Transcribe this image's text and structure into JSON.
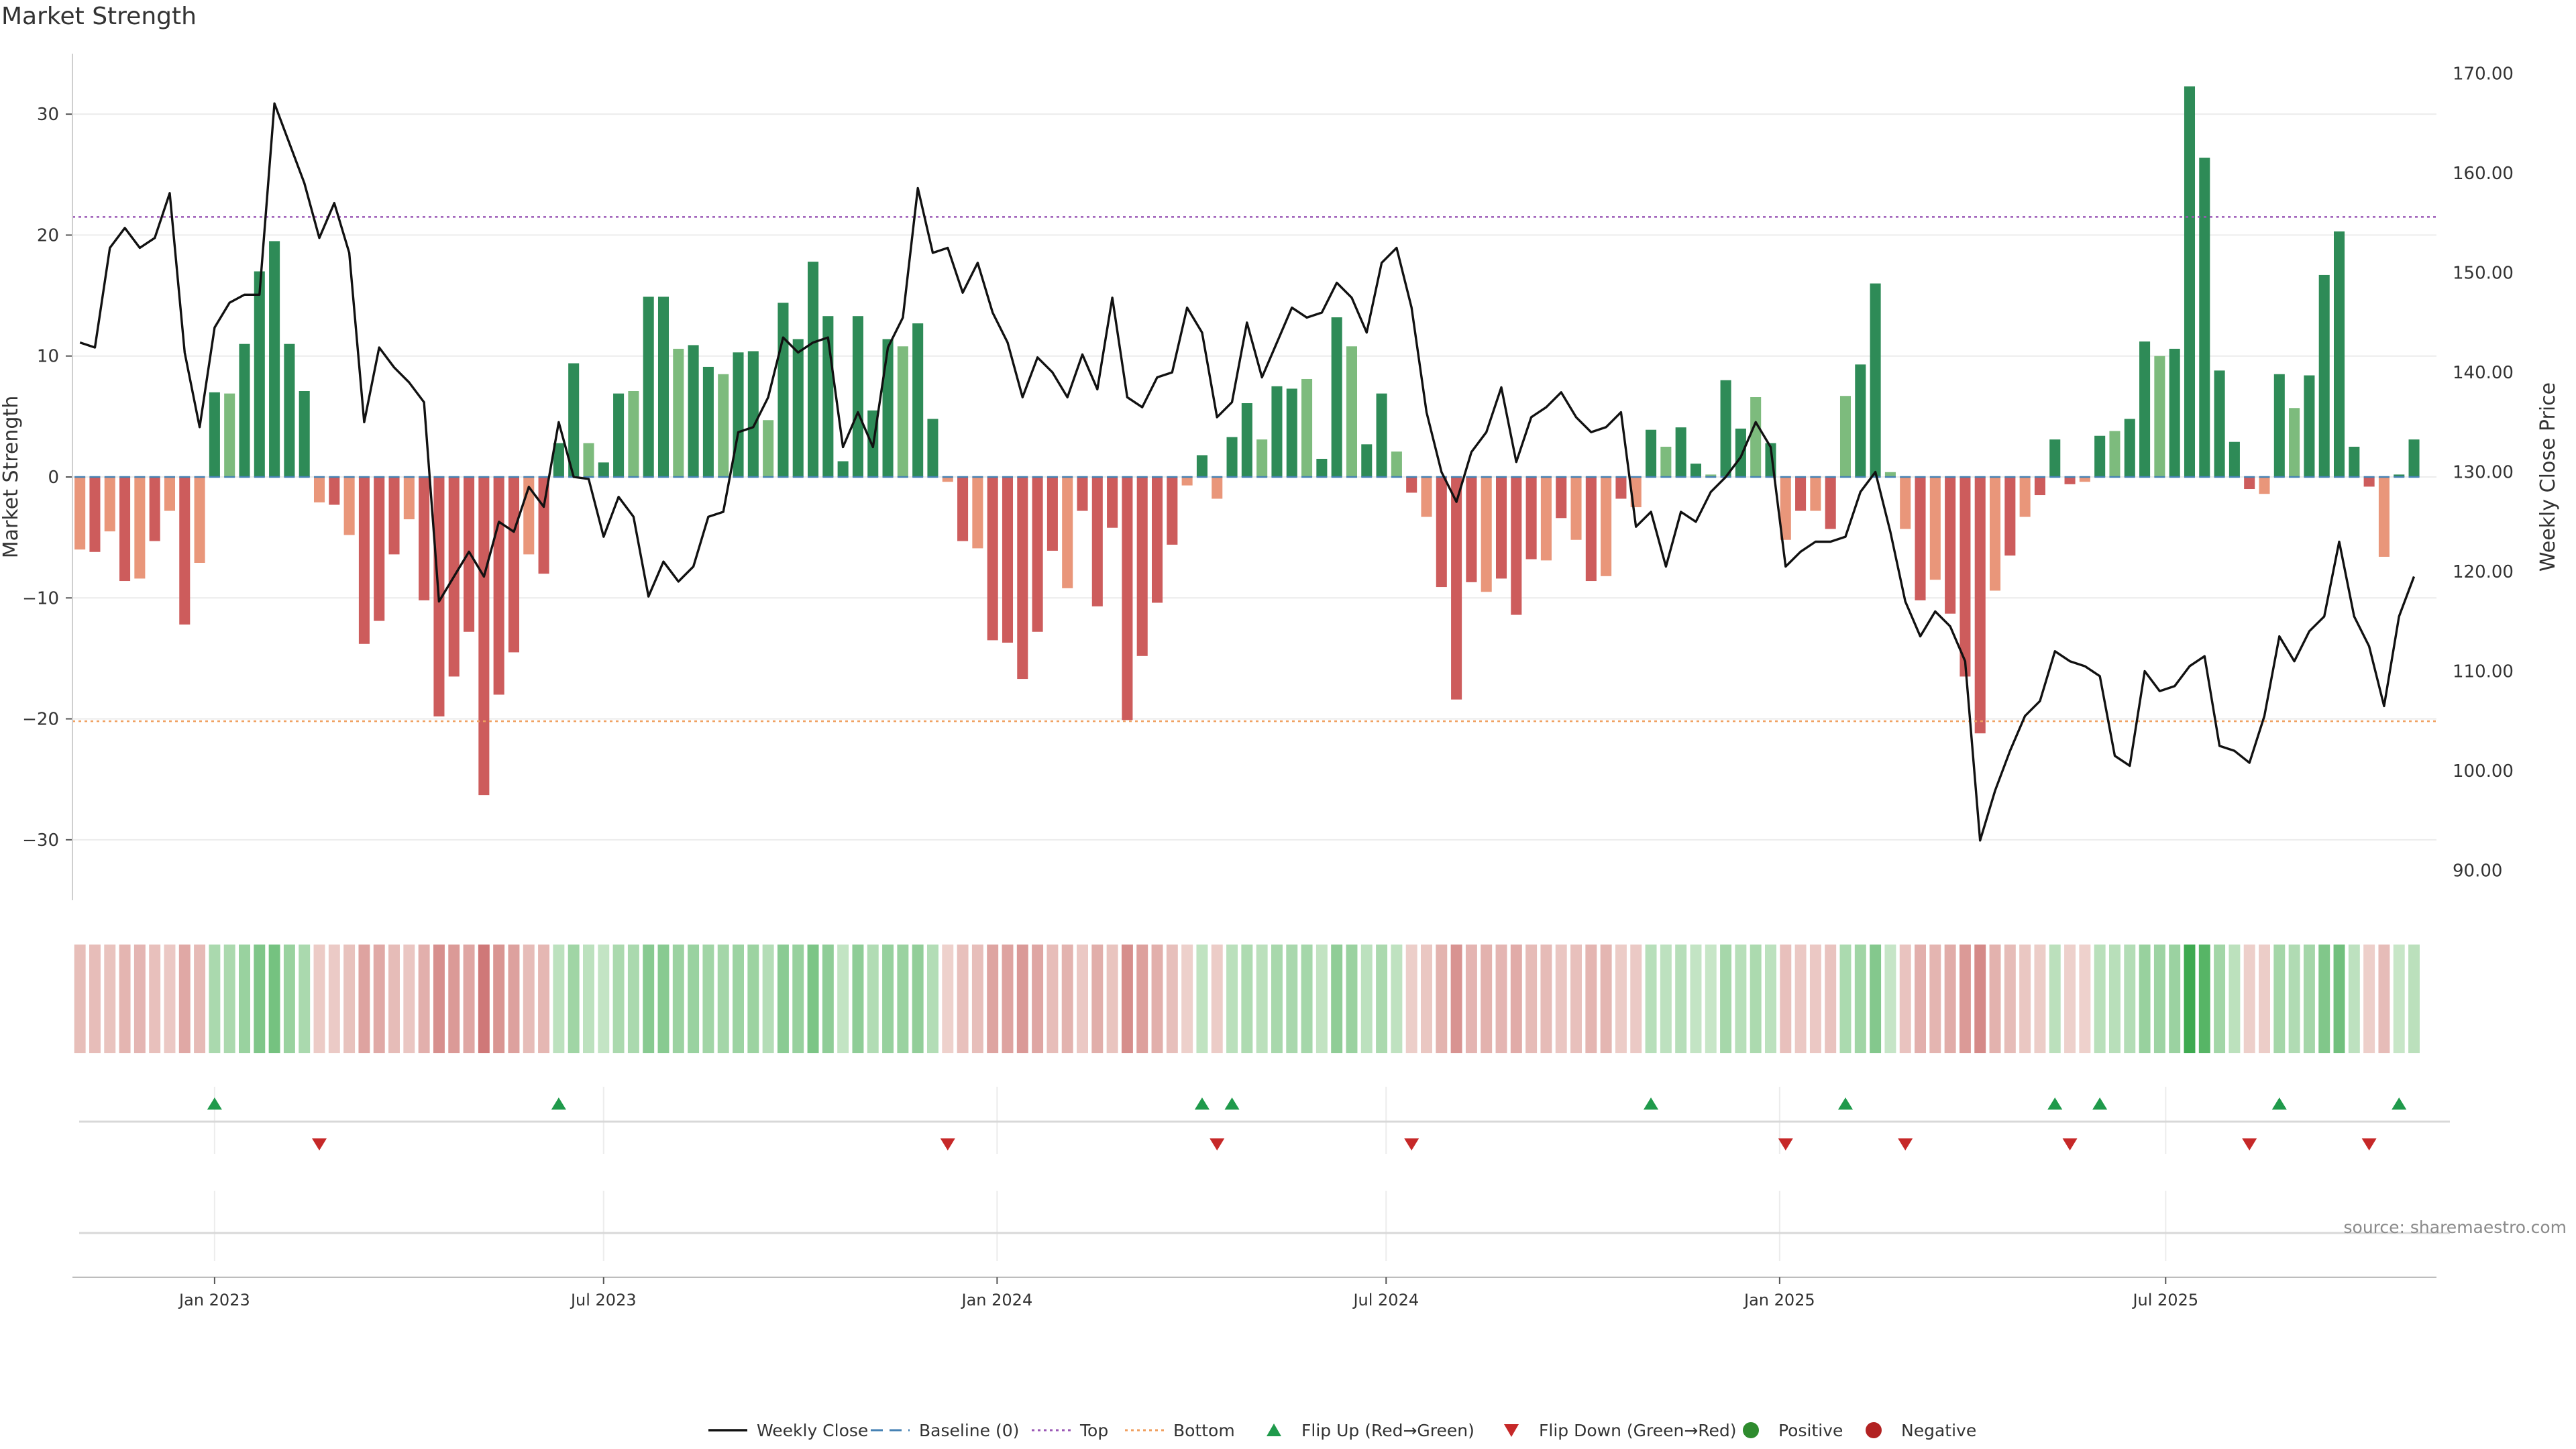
{
  "title": "Market Strength",
  "source": "source: sharemaestro.com",
  "colors": {
    "strong_green": "#2e8b57",
    "light_green": "#7dbb7d",
    "strong_red": "#cd5c5c",
    "light_red": "#e9967a",
    "close_line": "#111111",
    "baseline": "#4682b4",
    "top": "#9b59b6",
    "bottom": "#f0a060",
    "flip_up": "#1f9a4b",
    "flip_down": "#c62828",
    "positive": "#2e8b2e",
    "negative": "#b22222"
  },
  "legend": [
    {
      "label": "Weekly Close",
      "kind": "line",
      "color": "close_line"
    },
    {
      "label": "Baseline (0)",
      "kind": "dash",
      "color": "baseline"
    },
    {
      "label": "Top",
      "kind": "dot",
      "color": "top"
    },
    {
      "label": "Bottom",
      "kind": "dot",
      "color": "bottom"
    },
    {
      "label": "Flip Up (Red→Green)",
      "kind": "tri-up",
      "color": "flip_up"
    },
    {
      "label": "Flip Down (Green→Red)",
      "kind": "tri-down",
      "color": "flip_down"
    },
    {
      "label": "Positive",
      "kind": "circle",
      "color": "positive"
    },
    {
      "label": "Negative",
      "kind": "circle",
      "color": "negative"
    }
  ],
  "chart_data": {
    "type": "bar",
    "title": "Market Strength",
    "ylabel": "Market Strength",
    "y2label": "Weekly Close Price",
    "ylim": [
      -35,
      35
    ],
    "y2lim": [
      87,
      172
    ],
    "yticks": [
      30,
      20,
      10,
      0,
      -10,
      -20,
      -30
    ],
    "ytick_labels": [
      "30",
      "20",
      "10",
      "0",
      "−10",
      "−20",
      "−30"
    ],
    "y2ticks": [
      170,
      160,
      150,
      140,
      130,
      120,
      110,
      100,
      90
    ],
    "y2tick_labels": [
      "170.00",
      "160.00",
      "150.00",
      "140.00",
      "130.00",
      "120.00",
      "110.00",
      "100.00",
      "90.00"
    ],
    "top_line": 21.5,
    "bottom_line": -20.2,
    "xlim_weeks": [
      -9,
      148
    ],
    "xticks": [
      {
        "label": "Jan 2023",
        "week": 0
      },
      {
        "label": "Jul 2023",
        "week": 26
      },
      {
        "label": "Jan 2024",
        "week": 52.3
      },
      {
        "label": "Jul 2024",
        "week": 78.3
      },
      {
        "label": "Jan 2025",
        "week": 104.6
      },
      {
        "label": "Jul 2025",
        "week": 130.4
      }
    ],
    "series": [
      {
        "name": "Market Strength",
        "first_week": -9,
        "values": [
          -6,
          -6.2,
          -4.5,
          -8.6,
          -8.4,
          -5.3,
          -2.8,
          -12.2,
          -7.1,
          7,
          6.9,
          11,
          17,
          19.5,
          11,
          7.1,
          -2.1,
          -2.3,
          -4.8,
          -13.8,
          -11.9,
          -6.4,
          -3.5,
          -10.2,
          -19.8,
          -16.5,
          -12.8,
          -26.3,
          -18,
          -14.5,
          -6.4,
          -8,
          2.8,
          9.4,
          2.8,
          1.2,
          6.9,
          7.1,
          14.9,
          14.9,
          10.6,
          10.9,
          9.1,
          8.5,
          10.3,
          10.4,
          4.7,
          14.4,
          11.4,
          17.8,
          13.3,
          1.3,
          13.3,
          5.5,
          11.4,
          10.8,
          12.7,
          4.8,
          -0.4,
          -5.3,
          -5.9,
          -13.5,
          -13.7,
          -16.7,
          -12.8,
          -6.1,
          -9.2,
          -2.8,
          -10.7,
          -4.2,
          -20.1,
          -14.8,
          -10.4,
          -5.6,
          -0.7,
          1.8,
          -1.8,
          3.3,
          6.1,
          3.1,
          7.5,
          7.3,
          8.1,
          1.5,
          13.2,
          10.8,
          2.7,
          6.9,
          2.1,
          -1.3,
          -3.3,
          -9.1,
          -18.4,
          -8.7,
          -9.5,
          -8.4,
          -11.4,
          -6.8,
          -6.9,
          -3.4,
          -5.2,
          -8.6,
          -8.2,
          -1.8,
          -2.5,
          3.9,
          2.5,
          4.1,
          1.1,
          0.2,
          8,
          4,
          6.6,
          2.8,
          -5.2,
          -2.8,
          -2.8,
          -4.3,
          6.7,
          9.3,
          16,
          0.4,
          -4.3,
          -10.2,
          -8.5,
          -11.3,
          -16.5,
          -21.2,
          -9.4,
          -6.5,
          -3.3,
          -1.5,
          3.1,
          -0.6,
          -0.4,
          3.4,
          3.8,
          4.8,
          11.2,
          10,
          10.6,
          32.3,
          26.4,
          8.8,
          2.9,
          -1,
          -1.4,
          8.5,
          5.7,
          8.4,
          16.7,
          20.3,
          2.5,
          -0.8,
          -6.6,
          0.2,
          3.1
        ]
      },
      {
        "name": "Weekly Close",
        "points": [
          {
            "w": -9,
            "v": 143
          },
          {
            "w": -8,
            "v": 142.5
          },
          {
            "w": -7,
            "v": 152.5
          },
          {
            "w": -6,
            "v": 154.5
          },
          {
            "w": -5,
            "v": 152.5
          },
          {
            "w": -4,
            "v": 153.5
          },
          {
            "w": -3,
            "v": 158
          },
          {
            "w": -2,
            "v": 142
          },
          {
            "w": -1,
            "v": 134.5
          },
          {
            "w": 0,
            "v": 144.5
          },
          {
            "w": 1,
            "v": 147
          },
          {
            "w": 2,
            "v": 147.8
          },
          {
            "w": 3,
            "v": 147.8
          },
          {
            "w": 4,
            "v": 167
          },
          {
            "w": 5,
            "v": 163
          },
          {
            "w": 6,
            "v": 159
          },
          {
            "w": 7,
            "v": 153.5
          },
          {
            "w": 8,
            "v": 157
          },
          {
            "w": 9,
            "v": 152
          },
          {
            "w": 10,
            "v": 135
          },
          {
            "w": 11,
            "v": 142.5
          },
          {
            "w": 12,
            "v": 140.5
          },
          {
            "w": 13,
            "v": 139
          },
          {
            "w": 14,
            "v": 137
          },
          {
            "w": 15,
            "v": 117
          },
          {
            "w": 16,
            "v": 119.5
          },
          {
            "w": 17,
            "v": 122
          },
          {
            "w": 18,
            "v": 119.5
          },
          {
            "w": 19,
            "v": 125
          },
          {
            "w": 20,
            "v": 124
          },
          {
            "w": 21,
            "v": 128.5
          },
          {
            "w": 22,
            "v": 126.5
          },
          {
            "w": 23,
            "v": 135
          },
          {
            "w": 24,
            "v": 129.5
          },
          {
            "w": 25,
            "v": 129.3
          },
          {
            "w": 26,
            "v": 123.5
          },
          {
            "w": 27,
            "v": 127.5
          },
          {
            "w": 28,
            "v": 125.5
          },
          {
            "w": 29,
            "v": 117.5
          },
          {
            "w": 30,
            "v": 121
          },
          {
            "w": 31,
            "v": 119
          },
          {
            "w": 32,
            "v": 120.5
          },
          {
            "w": 33,
            "v": 125.5
          },
          {
            "w": 34,
            "v": 126
          },
          {
            "w": 35,
            "v": 134
          },
          {
            "w": 36,
            "v": 134.5
          },
          {
            "w": 37,
            "v": 137.5
          },
          {
            "w": 38,
            "v": 143.5
          },
          {
            "w": 39,
            "v": 142
          },
          {
            "w": 40,
            "v": 143
          },
          {
            "w": 41,
            "v": 143.5
          },
          {
            "w": 42,
            "v": 132.5
          },
          {
            "w": 43,
            "v": 136
          },
          {
            "w": 44,
            "v": 132.5
          },
          {
            "w": 45,
            "v": 142.5
          },
          {
            "w": 46,
            "v": 145.5
          },
          {
            "w": 47,
            "v": 158.5
          },
          {
            "w": 48,
            "v": 152
          },
          {
            "w": 49,
            "v": 152.5
          },
          {
            "w": 50,
            "v": 148
          },
          {
            "w": 51,
            "v": 151
          },
          {
            "w": 52,
            "v": 146
          },
          {
            "w": 53,
            "v": 143
          },
          {
            "w": 54,
            "v": 137.5
          },
          {
            "w": 55,
            "v": 141.5
          },
          {
            "w": 56,
            "v": 140
          },
          {
            "w": 57,
            "v": 137.5
          },
          {
            "w": 58,
            "v": 141.8
          },
          {
            "w": 59,
            "v": 138.3
          },
          {
            "w": 60,
            "v": 147.5
          },
          {
            "w": 61,
            "v": 137.5
          },
          {
            "w": 62,
            "v": 136.5
          },
          {
            "w": 63,
            "v": 139.5
          },
          {
            "w": 64,
            "v": 140
          },
          {
            "w": 65,
            "v": 146.5
          },
          {
            "w": 66,
            "v": 144
          },
          {
            "w": 67,
            "v": 135.5
          },
          {
            "w": 68,
            "v": 137
          },
          {
            "w": 69,
            "v": 145
          },
          {
            "w": 70,
            "v": 139.5
          },
          {
            "w": 71,
            "v": 143
          },
          {
            "w": 72,
            "v": 146.5
          },
          {
            "w": 73,
            "v": 145.5
          },
          {
            "w": 74,
            "v": 146
          },
          {
            "w": 75,
            "v": 149
          },
          {
            "w": 76,
            "v": 147.5
          },
          {
            "w": 77,
            "v": 144
          },
          {
            "w": 78,
            "v": 151
          },
          {
            "w": 79,
            "v": 152.5
          },
          {
            "w": 80,
            "v": 146.5
          },
          {
            "w": 81,
            "v": 136
          },
          {
            "w": 82,
            "v": 130
          },
          {
            "w": 83,
            "v": 127
          },
          {
            "w": 84,
            "v": 132
          },
          {
            "w": 85,
            "v": 134
          },
          {
            "w": 86,
            "v": 138.5
          },
          {
            "w": 87,
            "v": 131
          },
          {
            "w": 88,
            "v": 135.5
          },
          {
            "w": 89,
            "v": 136.5
          },
          {
            "w": 90,
            "v": 138
          },
          {
            "w": 91,
            "v": 135.5
          },
          {
            "w": 92,
            "v": 134
          },
          {
            "w": 93,
            "v": 134.5
          },
          {
            "w": 94,
            "v": 136
          },
          {
            "w": 95,
            "v": 124.5
          },
          {
            "w": 96,
            "v": 126
          },
          {
            "w": 97,
            "v": 120.5
          },
          {
            "w": 98,
            "v": 126
          },
          {
            "w": 99,
            "v": 125
          },
          {
            "w": 100,
            "v": 128
          },
          {
            "w": 101,
            "v": 129.5
          },
          {
            "w": 102,
            "v": 131.5
          },
          {
            "w": 103,
            "v": 135
          },
          {
            "w": 104,
            "v": 132.5
          },
          {
            "w": 105,
            "v": 120.5
          },
          {
            "w": 106,
            "v": 122
          },
          {
            "w": 107,
            "v": 123
          },
          {
            "w": 108,
            "v": 123
          },
          {
            "w": 109,
            "v": 123.5
          },
          {
            "w": 110,
            "v": 128
          },
          {
            "w": 111,
            "v": 130
          },
          {
            "w": 112,
            "v": 124
          },
          {
            "w": 113,
            "v": 117
          },
          {
            "w": 114,
            "v": 113.5
          },
          {
            "w": 115,
            "v": 116
          },
          {
            "w": 116,
            "v": 114.5
          },
          {
            "w": 117,
            "v": 111
          },
          {
            "w": 118,
            "v": 93
          },
          {
            "w": 119,
            "v": 98
          },
          {
            "w": 120,
            "v": 102
          },
          {
            "w": 121,
            "v": 105.5
          },
          {
            "w": 122,
            "v": 107
          },
          {
            "w": 123,
            "v": 112
          },
          {
            "w": 124,
            "v": 111
          },
          {
            "w": 125,
            "v": 110.5
          },
          {
            "w": 126,
            "v": 109.5
          },
          {
            "w": 127,
            "v": 101.5
          },
          {
            "w": 128,
            "v": 100.5
          },
          {
            "w": 129,
            "v": 110
          },
          {
            "w": 130,
            "v": 108
          },
          {
            "w": 131,
            "v": 108.5
          },
          {
            "w": 132,
            "v": 110.5
          },
          {
            "w": 133,
            "v": 111.5
          },
          {
            "w": 134,
            "v": 102.5
          },
          {
            "w": 135,
            "v": 102
          },
          {
            "w": 136,
            "v": 100.8
          },
          {
            "w": 137,
            "v": 105.5
          },
          {
            "w": 138,
            "v": 113.5
          },
          {
            "w": 139,
            "v": 111
          },
          {
            "w": 140,
            "v": 114
          },
          {
            "w": 141,
            "v": 115.5
          },
          {
            "w": 142,
            "v": 123
          },
          {
            "w": 143,
            "v": 115.5
          },
          {
            "w": 144,
            "v": 112.5
          },
          {
            "w": 145,
            "v": 106.5
          },
          {
            "w": 146,
            "v": 115.5
          },
          {
            "w": 147,
            "v": 119.5
          }
        ]
      }
    ],
    "flip_up_weeks": [
      0,
      23,
      66,
      68,
      96,
      109,
      123,
      126,
      138,
      146
    ],
    "flip_down_weeks": [
      7,
      49,
      67,
      80,
      105,
      113,
      124,
      136,
      144
    ]
  }
}
